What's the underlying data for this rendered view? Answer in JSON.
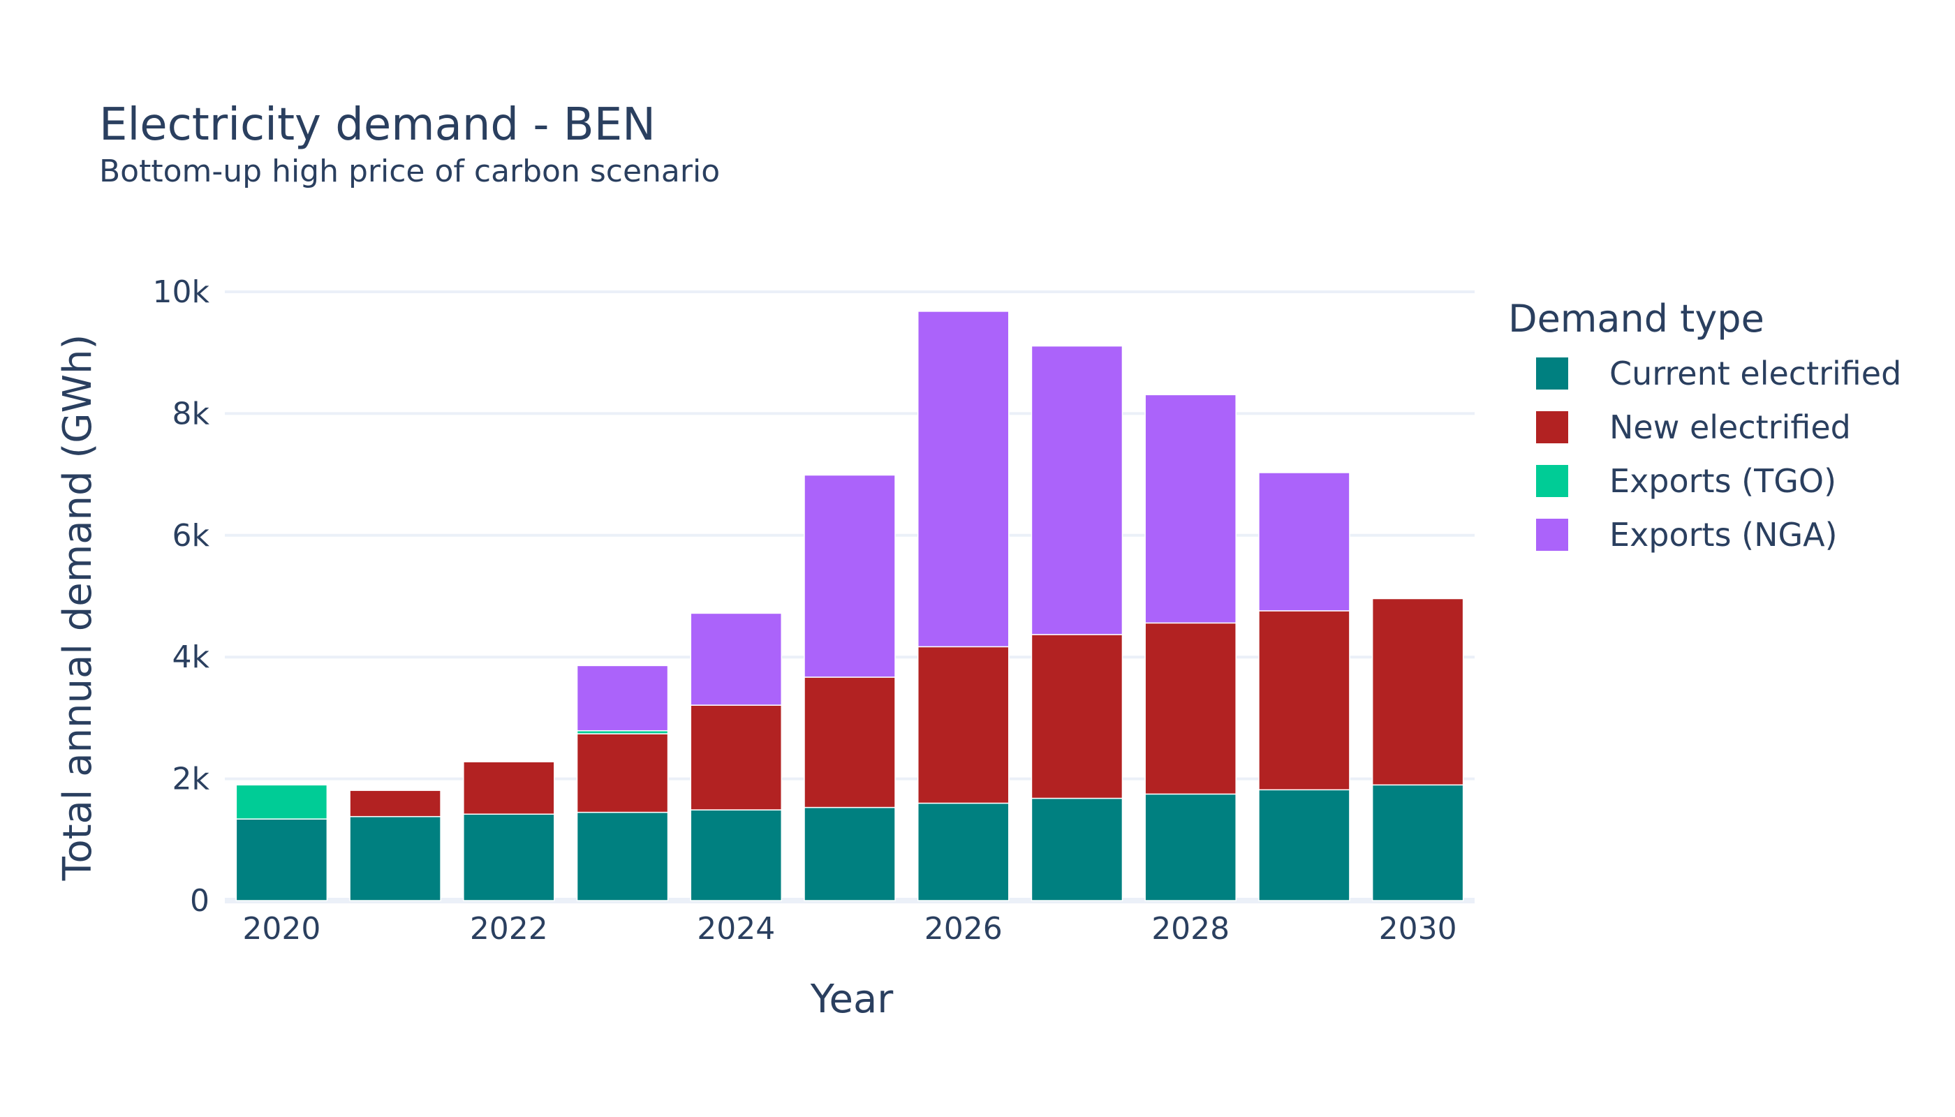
{
  "chart_data": {
    "type": "bar",
    "stacked": true,
    "title": "Electricity demand - BEN",
    "subtitle": "Bottom-up high price of carbon scenario",
    "xlabel": "Year",
    "ylabel": "Total annual demand (GWh)",
    "x": [
      2020,
      2021,
      2022,
      2023,
      2024,
      2025,
      2026,
      2027,
      2028,
      2029,
      2030
    ],
    "x_ticks": [
      "2020",
      "2022",
      "2024",
      "2026",
      "2028",
      "2030"
    ],
    "y_ticks": [
      {
        "value": 0,
        "label": "0"
      },
      {
        "value": 2000,
        "label": "2k"
      },
      {
        "value": 4000,
        "label": "4k"
      },
      {
        "value": 6000,
        "label": "6k"
      },
      {
        "value": 8000,
        "label": "8k"
      },
      {
        "value": 10000,
        "label": "10k"
      }
    ],
    "ylim": [
      0,
      10500
    ],
    "grid": true,
    "legend": {
      "title": "Demand type",
      "placement": "right"
    },
    "series": [
      {
        "name": "Current electrified",
        "color": "#008080",
        "values": [
          1340,
          1380,
          1420,
          1450,
          1490,
          1530,
          1600,
          1680,
          1750,
          1820,
          1900
        ]
      },
      {
        "name": "New electrified",
        "color": "#b22222",
        "values": [
          0,
          430,
          860,
          1290,
          1720,
          2140,
          2570,
          2690,
          2810,
          2940,
          3060
        ]
      },
      {
        "name": "Exports (TGO)",
        "color": "#00cc96",
        "values": [
          560,
          0,
          0,
          50,
          0,
          0,
          0,
          0,
          0,
          0,
          0
        ]
      },
      {
        "name": "Exports (NGA)",
        "color": "#ab63fa",
        "values": [
          0,
          0,
          0,
          1070,
          1510,
          3320,
          5510,
          4740,
          3750,
          2270,
          0
        ]
      }
    ]
  }
}
